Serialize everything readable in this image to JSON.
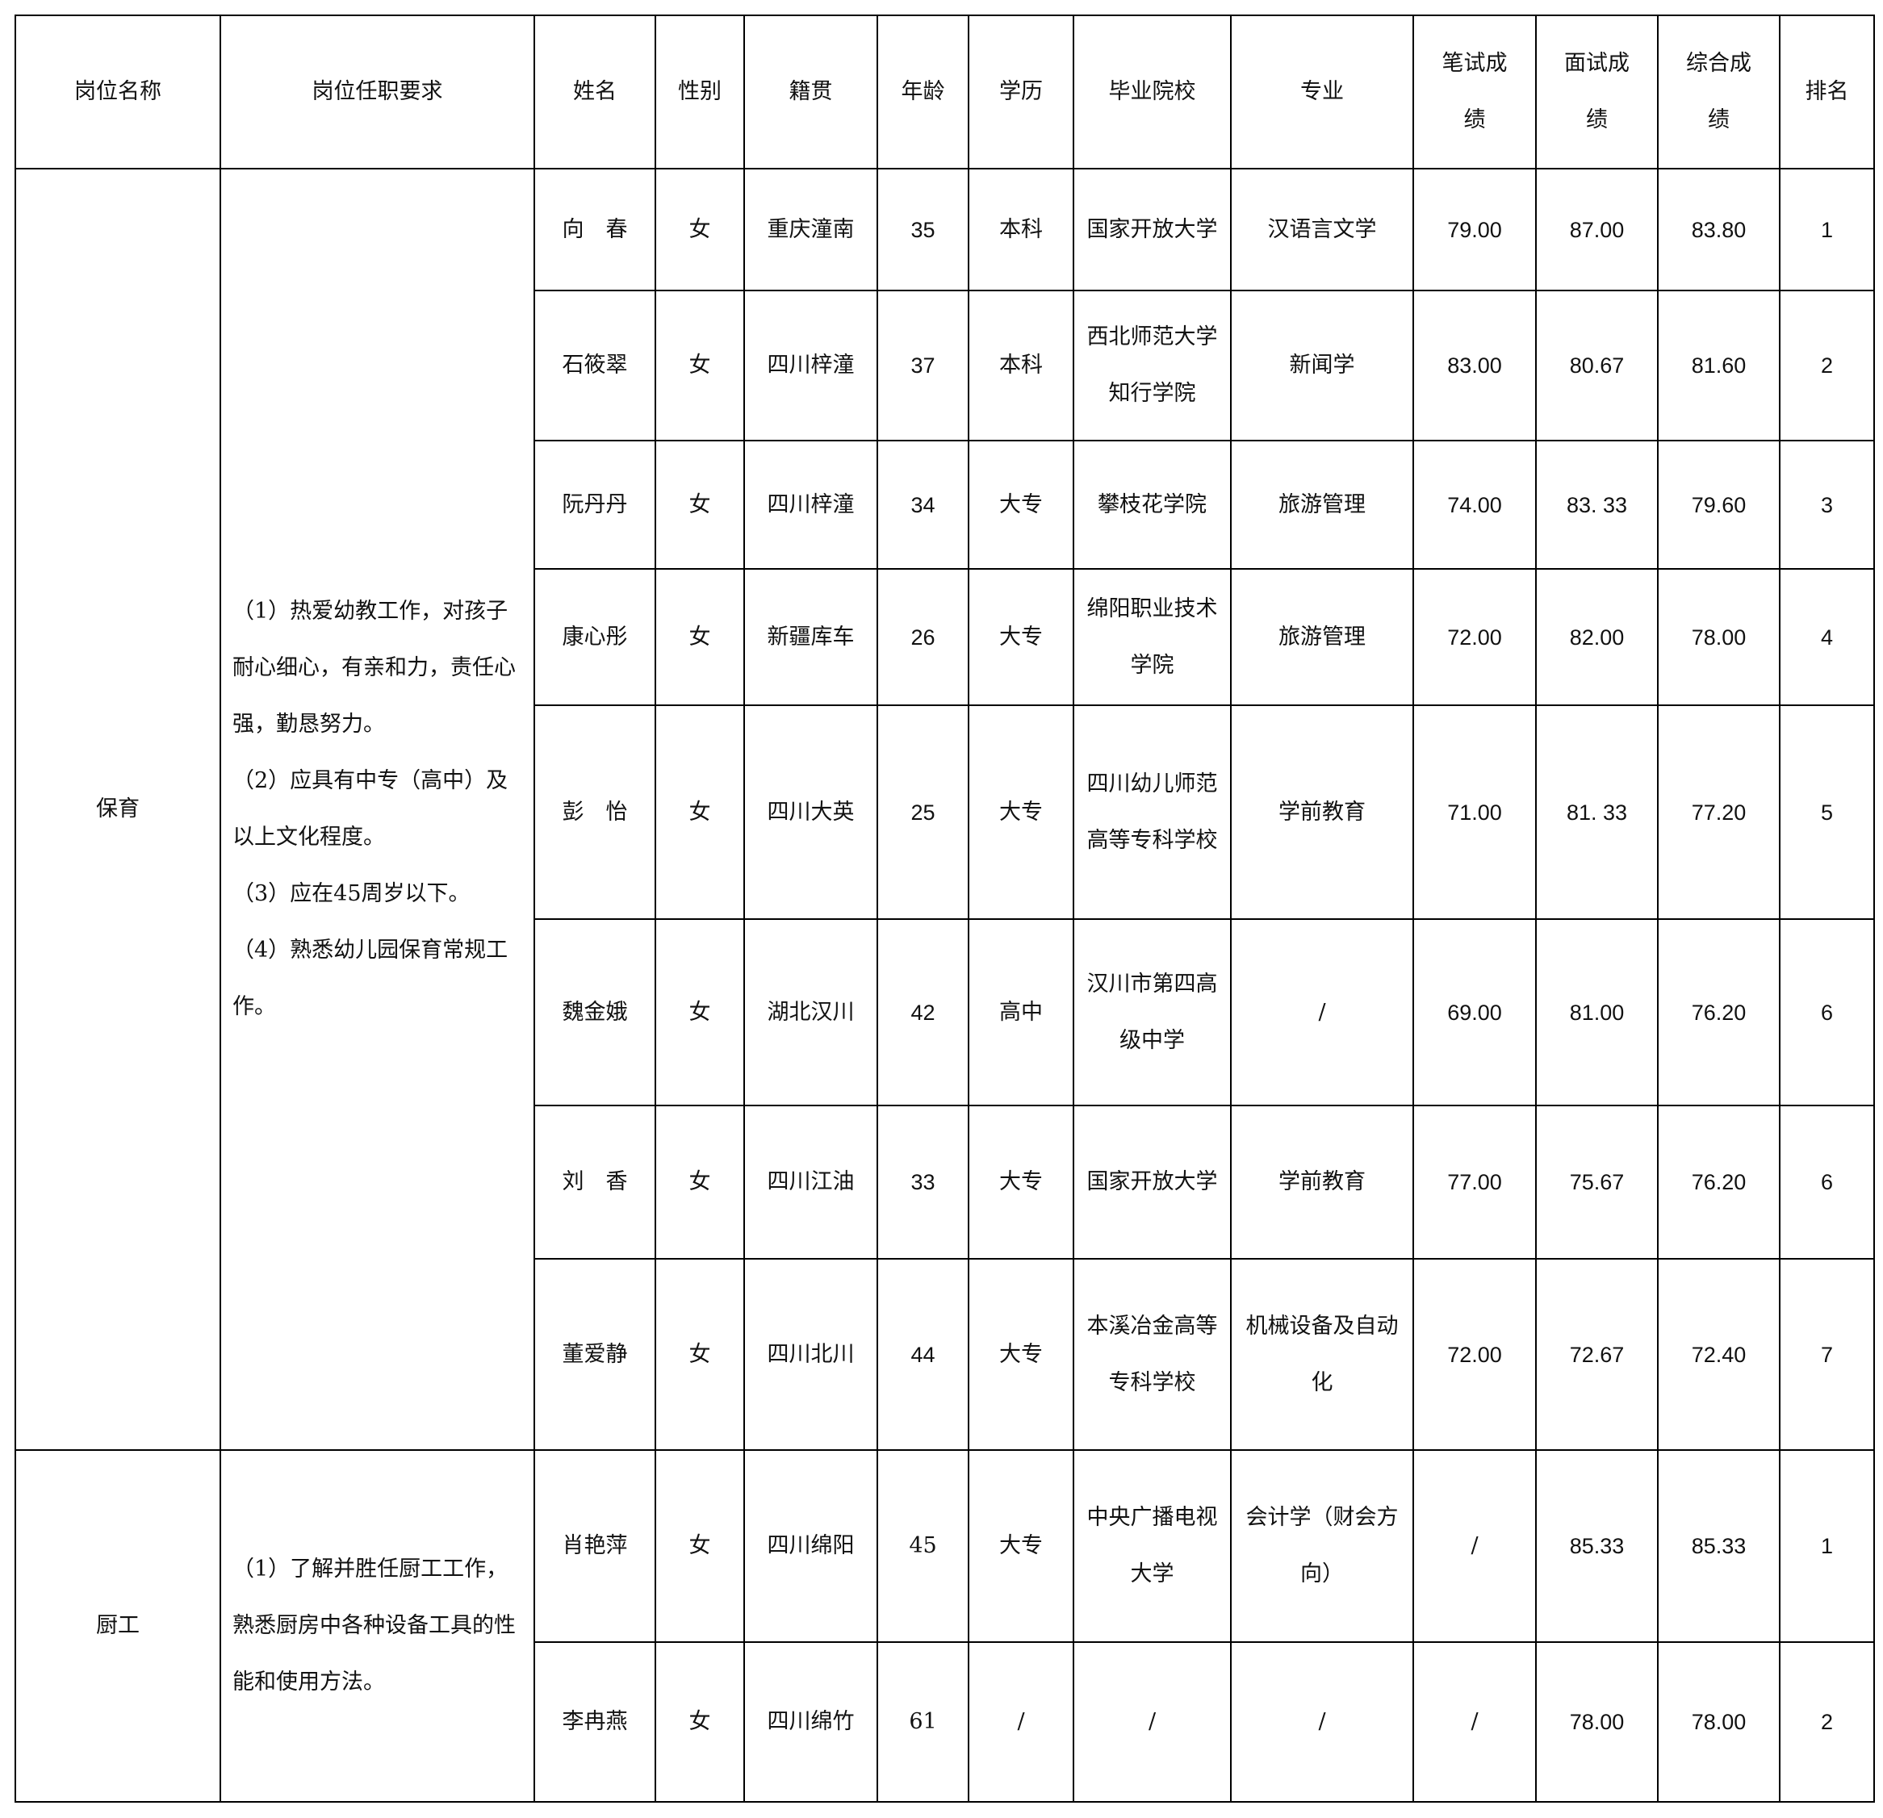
{
  "headers": [
    "岗位名称",
    "岗位任职要求",
    "姓名",
    "性别",
    "籍贯",
    "年龄",
    "学历",
    "毕业院校",
    "专业",
    "笔试成绩",
    "面试成绩",
    "综合成绩",
    "排名"
  ],
  "groups": [
    {
      "position": "保育",
      "requirements": [
        "（1）热爱幼教工作，对孩子耐心细心，有亲和力，责任心强，勤恳努力。",
        "（2）应具有中专（高中）及以上文化程度。",
        "（3）应在45周岁以下。",
        "（4）熟悉幼儿园保育常规工作。"
      ],
      "rows": [
        [
          "向　春",
          "女",
          "重庆潼南",
          "35",
          "本科",
          "国家开放大学",
          "汉语言文学",
          "79.00",
          "87.00",
          "83.80",
          "1"
        ],
        [
          "石筱翠",
          "女",
          "四川梓潼",
          "37",
          "本科",
          "西北师范大学知行学院",
          "新闻学",
          "83.00",
          "80.67",
          "81.60",
          "2"
        ],
        [
          "阮丹丹",
          "女",
          "四川梓潼",
          "34",
          "大专",
          "攀枝花学院",
          "旅游管理",
          "74.00",
          "83. 33",
          "79.60",
          "3"
        ],
        [
          "康心彤",
          "女",
          "新疆库车",
          "26",
          "大专",
          "绵阳职业技术学院",
          "旅游管理",
          "72.00",
          "82.00",
          "78.00",
          "4"
        ],
        [
          "彭　怡",
          "女",
          "四川大英",
          "25",
          "大专",
          "四川幼儿师范高等专科学校",
          "学前教育",
          "71.00",
          "81. 33",
          "77.20",
          "5"
        ],
        [
          "魏金娥",
          "女",
          "湖北汉川",
          "42",
          "高中",
          "汉川市第四高级中学",
          "/",
          "69.00",
          "81.00",
          "76.20",
          "6"
        ],
        [
          "刘　香",
          "女",
          "四川江油",
          "33",
          "大专",
          "国家开放大学",
          "学前教育",
          "77.00",
          "75.67",
          "76.20",
          "6"
        ],
        [
          "董爱静",
          "女",
          "四川北川",
          "44",
          "大专",
          "本溪冶金高等专科学校",
          "机械设备及自动化",
          "72.00",
          "72.67",
          "72.40",
          "7"
        ]
      ]
    },
    {
      "position": "厨工",
      "requirements": [
        "（1）了解并胜任厨工工作，熟悉厨房中各种设备工具的性能和使用方法。"
      ],
      "rows": [
        [
          "肖艳萍",
          "女",
          "四川绵阳",
          "45",
          "大专",
          "中央广播电视大学",
          "会计学（财会方向）",
          "/",
          "85.33",
          "85.33",
          "1"
        ],
        [
          "李冉燕",
          "女",
          "四川绵竹",
          "61",
          "/",
          "/",
          "/",
          "/",
          "78.00",
          "78.00",
          "2"
        ]
      ]
    }
  ]
}
